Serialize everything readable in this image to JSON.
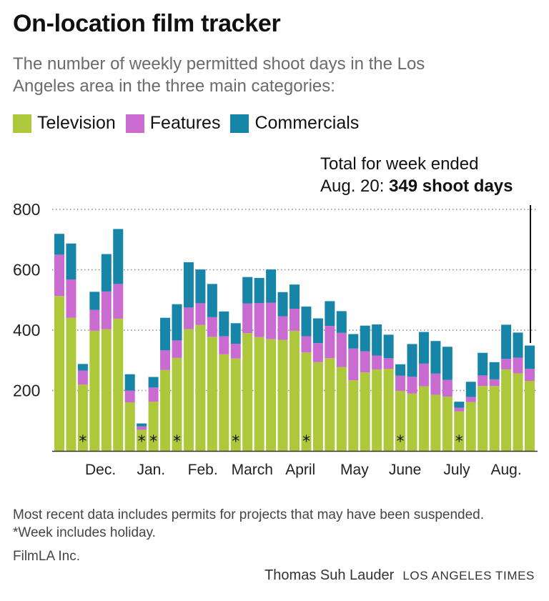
{
  "title": "On-location film tracker",
  "subtitle": "The number of weekly permitted shoot days in the Los Angeles area in the three main categories:",
  "legend": [
    {
      "label": "Television",
      "color": "#adc83a"
    },
    {
      "label": "Features",
      "color": "#c96bd1"
    },
    {
      "label": "Commercials",
      "color": "#1785a7"
    }
  ],
  "annotation": {
    "line1": "Total for week ended",
    "line2_prefix": "Aug. 20: ",
    "line2_bold": "349 shoot days"
  },
  "footer": {
    "notes": "Most recent data includes permits for projects that may have been suspended. *Week includes holiday.",
    "source": "FilmLA Inc.",
    "author": "Thomas Suh Lauder",
    "org": "LOS ANGELES TIMES"
  },
  "chart_data": {
    "type": "bar",
    "stacked": true,
    "ylim": [
      0,
      800
    ],
    "yticks": [
      200,
      400,
      600,
      800
    ],
    "grid": true,
    "legend_position": "top",
    "holiday_marker": "*",
    "month_labels": [
      {
        "label": "Dec.",
        "at_week": 3.5
      },
      {
        "label": "Jan.",
        "at_week": 7.8
      },
      {
        "label": "Feb.",
        "at_week": 12.2
      },
      {
        "label": "March",
        "at_week": 16.4
      },
      {
        "label": "April",
        "at_week": 20.5
      },
      {
        "label": "May",
        "at_week": 25.1
      },
      {
        "label": "June",
        "at_week": 29.4
      },
      {
        "label": "July",
        "at_week": 33.8
      },
      {
        "label": "Aug.",
        "at_week": 38.0
      }
    ],
    "series": [
      {
        "name": "Television",
        "values": [
          513,
          441,
          220,
          398,
          403,
          438,
          161,
          70,
          163,
          268,
          308,
          403,
          417,
          378,
          320,
          306,
          390,
          377,
          370,
          368,
          398,
          326,
          294,
          307,
          278,
          234,
          260,
          270,
          272,
          199,
          190,
          214,
          186,
          180,
          131,
          162,
          215,
          215,
          270,
          257,
          232
        ]
      },
      {
        "name": "Features",
        "values": [
          137,
          127,
          46,
          69,
          125,
          115,
          39,
          11,
          47,
          65,
          58,
          72,
          72,
          65,
          60,
          49,
          98,
          113,
          121,
          78,
          73,
          54,
          63,
          107,
          113,
          105,
          70,
          46,
          35,
          50,
          56,
          75,
          70,
          55,
          12,
          17,
          35,
          22,
          35,
          52,
          40
        ]
      },
      {
        "name": "Commercials",
        "values": [
          69,
          119,
          22,
          60,
          124,
          182,
          54,
          10,
          35,
          108,
          120,
          150,
          112,
          110,
          82,
          68,
          88,
          83,
          110,
          80,
          80,
          98,
          82,
          82,
          72,
          48,
          85,
          103,
          78,
          38,
          108,
          105,
          108,
          110,
          20,
          50,
          75,
          57,
          113,
          83,
          77
        ]
      }
    ],
    "holiday_weeks": [
      2,
      7,
      8,
      10,
      15,
      21,
      29,
      34
    ]
  }
}
